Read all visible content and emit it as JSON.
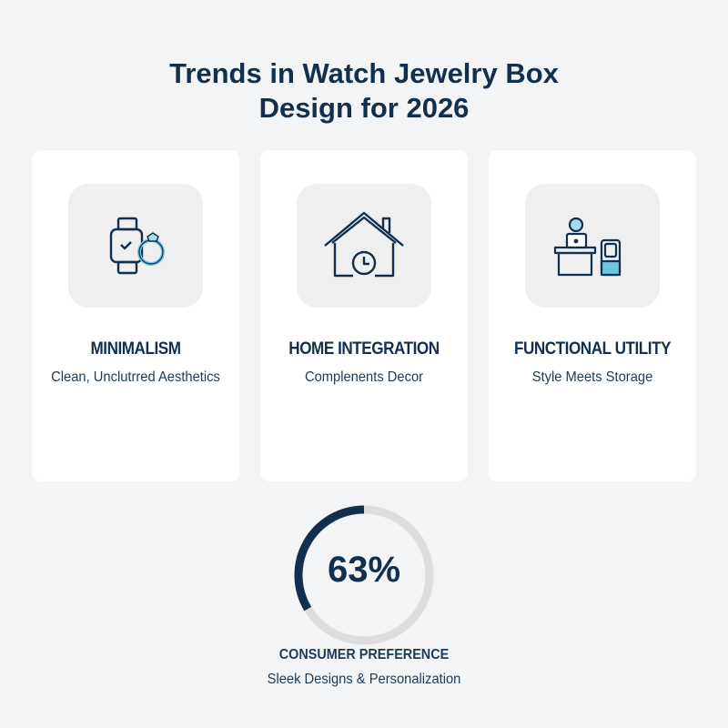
{
  "title": {
    "line1": "Trends in Watch Jewelry Box",
    "line2": "Design for 2026"
  },
  "colors": {
    "primary": "#12304e",
    "accent": "#6cc6e0",
    "ring_track": "#dddddd",
    "background": "#f3f4f5"
  },
  "cards": [
    {
      "icon": "watch-ring-icon",
      "heading": "MINIMALISM",
      "subtitle": "Clean, Unclutrred Aesthetics"
    },
    {
      "icon": "house-clock-icon",
      "heading": "HOME INTEGRATION",
      "subtitle": "Complenents Decor"
    },
    {
      "icon": "desk-jewelry-box-icon",
      "heading": "FUNCTIONAL UTILITY",
      "subtitle": "Style Meets Storage"
    }
  ],
  "stat": {
    "value": "63%",
    "percent": 63,
    "label": "CONSUMER PREFERENCE",
    "subtitle": "Sleek Designs & Personalization"
  }
}
